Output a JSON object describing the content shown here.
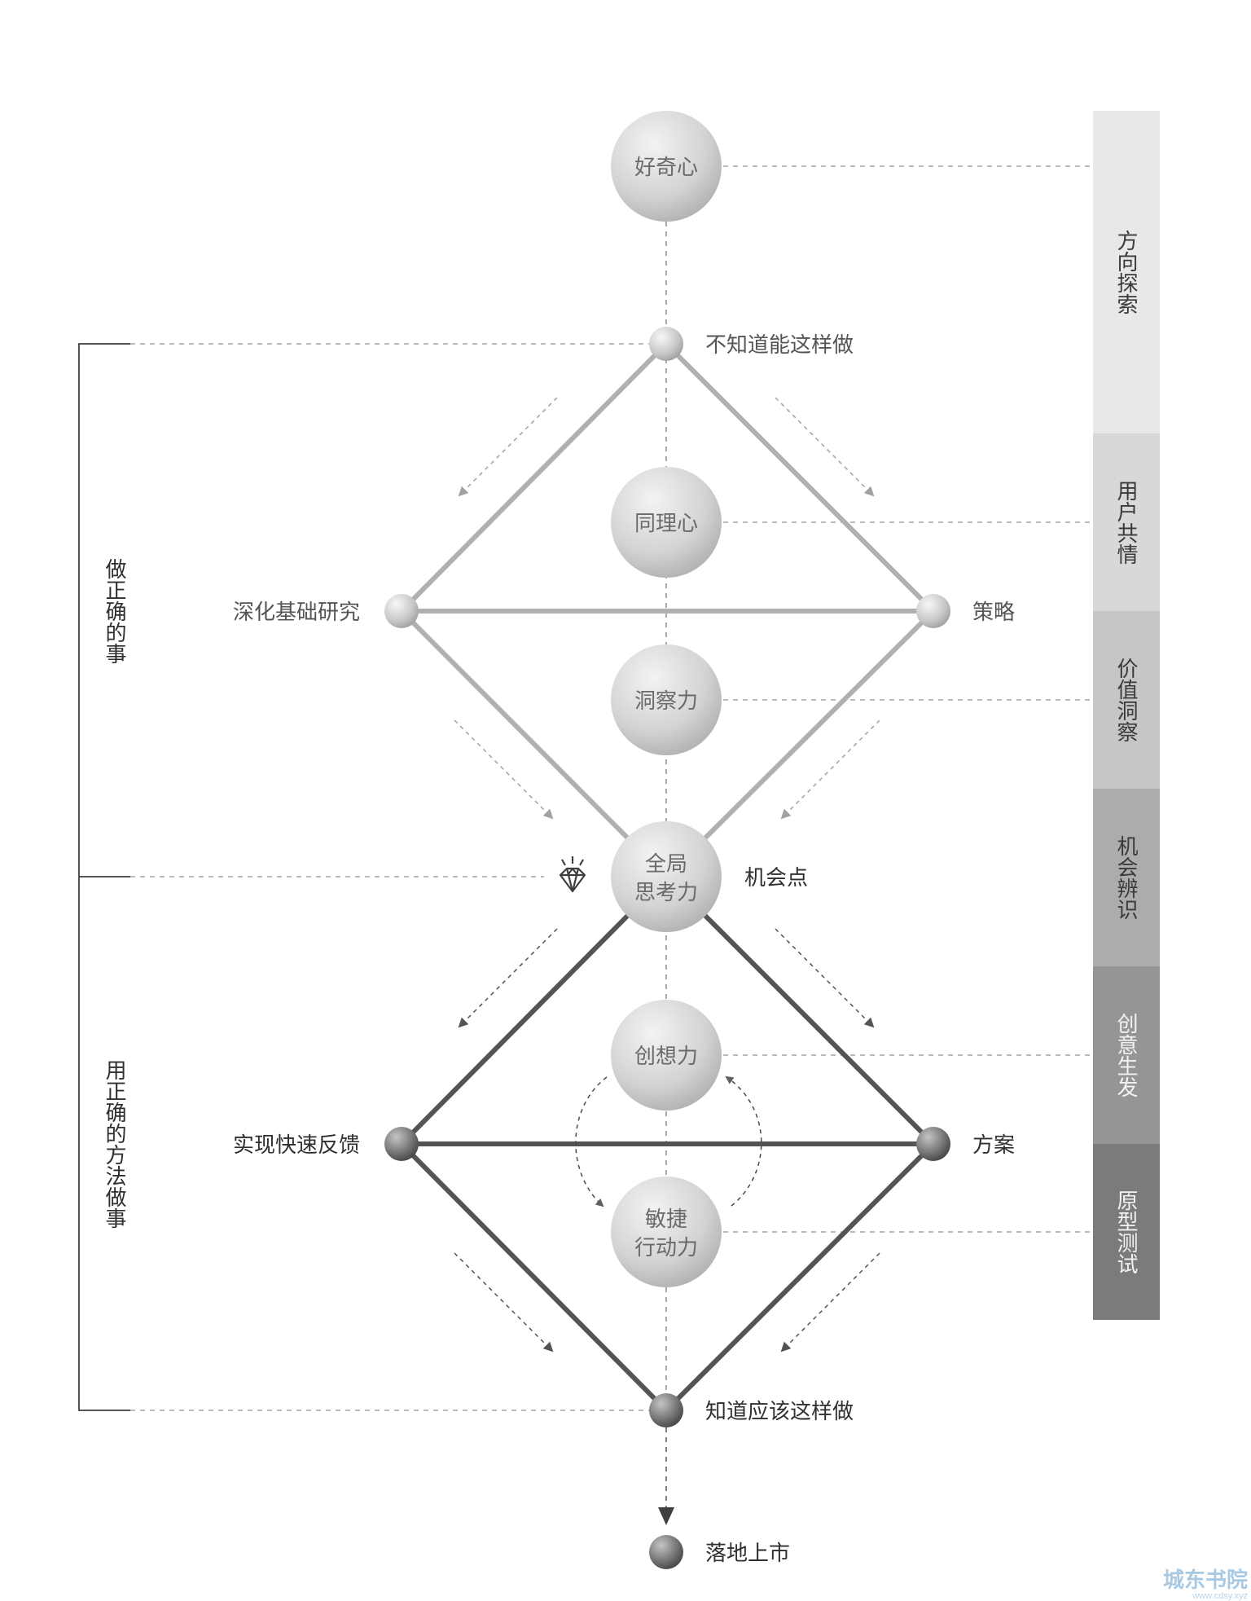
{
  "circles": {
    "curiosity": "好奇心",
    "empathy": "同理心",
    "insight": "洞察力",
    "global_line1": "全局",
    "global_line2": "思考力",
    "creativity": "创想力",
    "agile_line1": "敏捷",
    "agile_line2": "行动力"
  },
  "nodes": {
    "dont_know": "不知道能这样做",
    "deepen_research": "深化基础研究",
    "strategy": "策略",
    "opportunity": "机会点",
    "fast_feedback": "实现快速反馈",
    "solution": "方案",
    "know_should": "知道应该这样做",
    "launch": "落地上市"
  },
  "phases": [
    {
      "label": "方向探索",
      "color": "#e8e8e9"
    },
    {
      "label": "用户共情",
      "color": "#d8d8d9"
    },
    {
      "label": "价值洞察",
      "color": "#c6c6c7"
    },
    {
      "label": "机会辨识",
      "color": "#acacad"
    },
    {
      "label": "创意生发",
      "color": "#959596"
    },
    {
      "label": "原型测试",
      "color": "#7b7b7c"
    }
  ],
  "brackets": {
    "do_right_thing": "做正确的事",
    "do_thing_right": "用正确的方法做事"
  },
  "watermark": {
    "title": "城东书院",
    "url": "www.cdsy.xyz"
  },
  "colors": {
    "upper_diamond": "#b0b0b2",
    "lower_diamond": "#545456",
    "guide_dash": "#9a9a9a",
    "watermark": "#a9c9e2"
  }
}
